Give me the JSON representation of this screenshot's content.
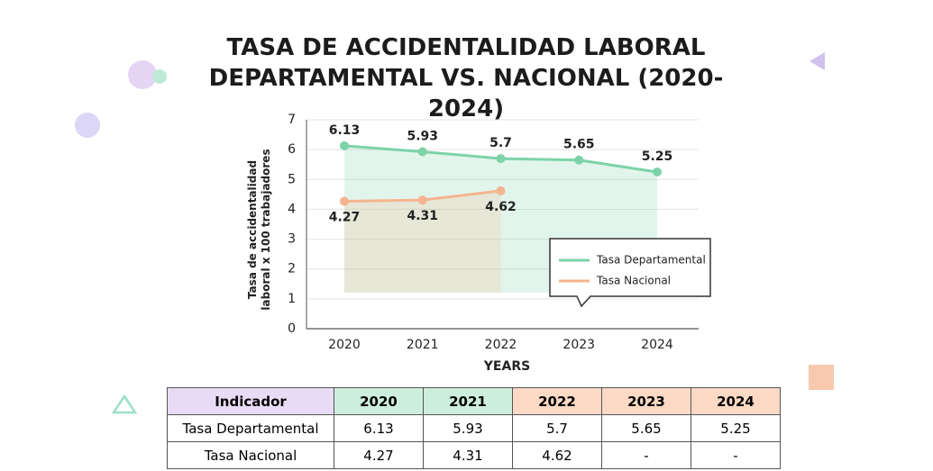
{
  "chart_data": {
    "type": "line",
    "title": "TASA DE ACCIDENTALIDAD LABORAL DEPARTAMENTAL VS. NACIONAL (2020-2024)",
    "x_label": "YEARS",
    "y_label": "Tasa de accidentalidad laboral x 100 trabajadores",
    "categories": [
      "2020",
      "2021",
      "2022",
      "2023",
      "2024"
    ],
    "series": [
      {
        "name": "Tasa Departamental",
        "color": "#7dd3a8",
        "values": [
          6.13,
          5.93,
          5.7,
          5.65,
          5.25
        ]
      },
      {
        "name": "Tasa Nacional",
        "color": "#f5b48f",
        "values": [
          4.27,
          4.31,
          4.62,
          null,
          null
        ]
      }
    ],
    "ylim": [
      0,
      7
    ],
    "yticks": [
      0,
      1,
      2,
      3,
      4,
      5,
      6,
      7
    ],
    "grid": true,
    "legend": "right"
  },
  "table": {
    "header": [
      "Indicador",
      "2020",
      "2021",
      "2022",
      "2023",
      "2024"
    ],
    "rows": [
      [
        "Tasa Departamental",
        6.13,
        5.93,
        5.7,
        5.65,
        5.25
      ],
      [
        "Tasa Nacional",
        4.27,
        4.31,
        4.62,
        "-",
        "-"
      ]
    ]
  }
}
